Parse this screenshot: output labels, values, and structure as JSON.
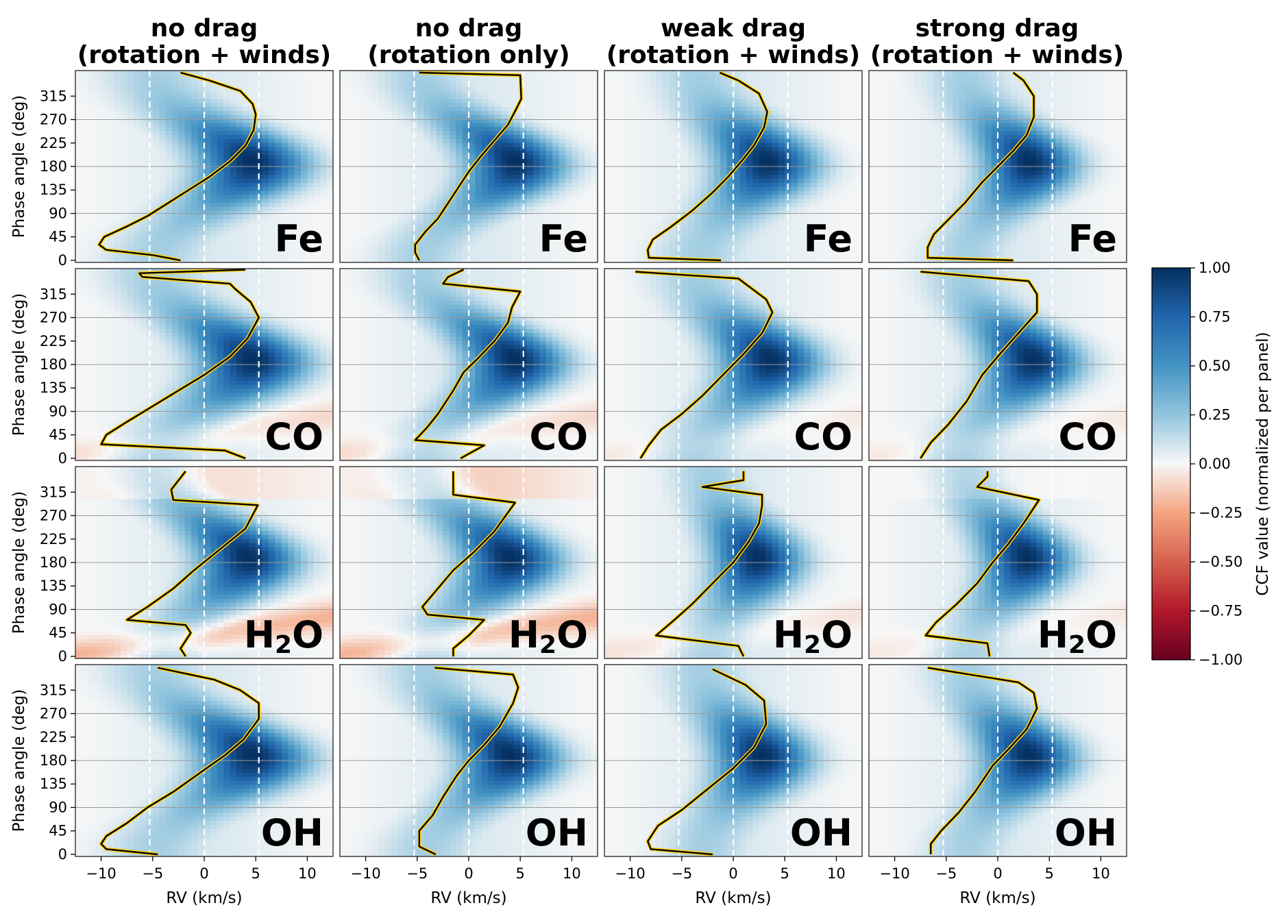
{
  "figure": {
    "column_titles": [
      [
        "no drag",
        "(rotation + winds)"
      ],
      [
        "no drag",
        "(rotation only)"
      ],
      [
        "weak drag",
        "(rotation + winds)"
      ],
      [
        "strong drag",
        "(rotation + winds)"
      ]
    ],
    "row_species": [
      "Fe",
      "CO",
      "H2O",
      "OH"
    ],
    "ylabel": "Phase angle (deg)",
    "xlabel": "RV (km/s)",
    "colorbar_label": "CCF value (normalized per panel)"
  },
  "chart_data": {
    "type": "heatmap",
    "x_axis": {
      "label": "RV (km/s)",
      "ticks": [
        -10,
        -5,
        0,
        5,
        10
      ],
      "range": [
        -12.5,
        12.5
      ]
    },
    "y_axis": {
      "label": "Phase angle (deg)",
      "ticks": [
        0,
        45,
        90,
        135,
        180,
        225,
        270,
        315
      ],
      "range": [
        -4,
        364
      ]
    },
    "colorbar": {
      "label": "CCF value (normalized per panel)",
      "ticks": [
        "1.00",
        "0.75",
        "0.50",
        "0.25",
        "0.00",
        "−0.25",
        "−0.50",
        "−0.75",
        "−1.00"
      ],
      "range": [
        -1,
        1
      ],
      "colormap": "RdBu",
      "colors": {
        "neg_end": "#67001f",
        "neg_mid": "#ef9a7b",
        "zero": "#f7f7f7",
        "pos_mid": "#4393c3",
        "pos_end": "#053061"
      }
    },
    "reference_lines": {
      "vertical_dashed_rv": [
        -5.3,
        0,
        5.3
      ],
      "horizontal_grid_phase": [
        90,
        180,
        270
      ]
    },
    "trace_colors": {
      "line": "#000000",
      "outline": "#ffd21a"
    },
    "panels": [
      {
        "row": 0,
        "col": 0,
        "species": "Fe",
        "max_rv": 5.0,
        "width": 5.0,
        "trace": [
          [
            -2.3,
            0
          ],
          [
            -5,
            10
          ],
          [
            -9.5,
            20
          ],
          [
            -10.2,
            30
          ],
          [
            -9.7,
            45
          ],
          [
            -7.5,
            65
          ],
          [
            -5.5,
            85
          ],
          [
            -3.5,
            110
          ],
          [
            -1.5,
            135
          ],
          [
            0.5,
            160
          ],
          [
            2.5,
            190
          ],
          [
            4,
            220
          ],
          [
            4.8,
            250
          ],
          [
            5,
            280
          ],
          [
            4.7,
            300
          ],
          [
            3.5,
            325
          ],
          [
            0.5,
            345
          ],
          [
            -2.3,
            360
          ]
        ]
      },
      {
        "row": 0,
        "col": 1,
        "species": "Fe",
        "max_rv": 4.8,
        "width": 4.5,
        "trace": [
          [
            -4.8,
            0
          ],
          [
            -5.2,
            15
          ],
          [
            -5.2,
            30
          ],
          [
            -4.2,
            55
          ],
          [
            -3,
            80
          ],
          [
            -2,
            110
          ],
          [
            -1,
            140
          ],
          [
            0,
            170
          ],
          [
            1.2,
            200
          ],
          [
            2.5,
            230
          ],
          [
            3.8,
            260
          ],
          [
            4.6,
            290
          ],
          [
            5.1,
            310
          ],
          [
            5,
            355
          ],
          [
            -4.8,
            360
          ]
        ]
      },
      {
        "row": 0,
        "col": 2,
        "species": "Fe",
        "max_rv": 3.5,
        "width": 4.5,
        "trace": [
          [
            -1.2,
            0
          ],
          [
            -8.2,
            5
          ],
          [
            -8.3,
            20
          ],
          [
            -7.8,
            40
          ],
          [
            -6,
            65
          ],
          [
            -4,
            95
          ],
          [
            -2,
            130
          ],
          [
            -0.5,
            160
          ],
          [
            0.8,
            190
          ],
          [
            2,
            220
          ],
          [
            3,
            255
          ],
          [
            3.3,
            285
          ],
          [
            2.5,
            320
          ],
          [
            0.5,
            345
          ],
          [
            -1.3,
            360
          ]
        ]
      },
      {
        "row": 0,
        "col": 3,
        "species": "Fe",
        "max_rv": 3.3,
        "width": 4.2,
        "trace": [
          [
            1.5,
            0
          ],
          [
            -6.8,
            5
          ],
          [
            -6.8,
            25
          ],
          [
            -6.2,
            50
          ],
          [
            -4.7,
            80
          ],
          [
            -3.2,
            110
          ],
          [
            -1.5,
            150
          ],
          [
            0,
            180
          ],
          [
            1.5,
            210
          ],
          [
            2.8,
            240
          ],
          [
            3.5,
            275
          ],
          [
            3.5,
            315
          ],
          [
            2.5,
            345
          ],
          [
            1.5,
            360
          ]
        ]
      },
      {
        "row": 1,
        "col": 0,
        "species": "CO",
        "max_rv": 5.0,
        "width": 5.0,
        "neg_band": [
          45,
          0.1
        ],
        "trace": [
          [
            4,
            0
          ],
          [
            2,
            15
          ],
          [
            -10,
            27
          ],
          [
            -9.5,
            45
          ],
          [
            -7.5,
            70
          ],
          [
            -5,
            100
          ],
          [
            -2.5,
            130
          ],
          [
            0,
            160
          ],
          [
            2.5,
            195
          ],
          [
            4.2,
            230
          ],
          [
            5.3,
            270
          ],
          [
            4.5,
            300
          ],
          [
            3,
            325
          ],
          [
            2.5,
            335
          ],
          [
            -6,
            348
          ],
          [
            -6.3,
            355
          ],
          [
            4,
            362
          ]
        ]
      },
      {
        "row": 1,
        "col": 1,
        "species": "CO",
        "max_rv": 4.8,
        "width": 4.5,
        "neg_band": [
          45,
          0.1
        ],
        "trace": [
          [
            -0.8,
            0
          ],
          [
            1.5,
            25
          ],
          [
            -5.2,
            35
          ],
          [
            -4,
            60
          ],
          [
            -3,
            85
          ],
          [
            -1.5,
            130
          ],
          [
            -0.5,
            165
          ],
          [
            0.8,
            190
          ],
          [
            2.5,
            225
          ],
          [
            3.8,
            260
          ],
          [
            4.2,
            290
          ],
          [
            5,
            320
          ],
          [
            -2.5,
            335
          ],
          [
            -2,
            348
          ],
          [
            -0.5,
            362
          ]
        ]
      },
      {
        "row": 1,
        "col": 2,
        "species": "CO",
        "max_rv": 3.8,
        "width": 4.5,
        "neg_band": [
          40,
          0.05
        ],
        "trace": [
          [
            -9,
            0
          ],
          [
            -8.2,
            25
          ],
          [
            -7,
            55
          ],
          [
            -5,
            85
          ],
          [
            -3,
            120
          ],
          [
            -1,
            160
          ],
          [
            1,
            200
          ],
          [
            2.8,
            240
          ],
          [
            3.8,
            280
          ],
          [
            3.2,
            305
          ],
          [
            1.5,
            330
          ],
          [
            0.5,
            345
          ],
          [
            -9.5,
            358
          ]
        ]
      },
      {
        "row": 1,
        "col": 3,
        "species": "CO",
        "max_rv": 3.6,
        "width": 4.3,
        "neg_band": [
          40,
          0.05
        ],
        "trace": [
          [
            -7.5,
            0
          ],
          [
            -6.5,
            30
          ],
          [
            -4.8,
            65
          ],
          [
            -3,
            110
          ],
          [
            -1.5,
            160
          ],
          [
            0.2,
            200
          ],
          [
            2,
            240
          ],
          [
            3.8,
            280
          ],
          [
            3.8,
            315
          ],
          [
            3,
            340
          ],
          [
            -7.5,
            358
          ]
        ]
      },
      {
        "row": 2,
        "col": 0,
        "species": "H₂O",
        "max_rv": 4.5,
        "width": 4.5,
        "neg_band": [
          40,
          0.22
        ],
        "top_neg": 0.15,
        "trace": [
          [
            -1.8,
            0
          ],
          [
            -2.3,
            15
          ],
          [
            -1.3,
            45
          ],
          [
            -1.8,
            60
          ],
          [
            -7.5,
            70
          ],
          [
            -5.5,
            95
          ],
          [
            -3,
            130
          ],
          [
            -1,
            165
          ],
          [
            1.5,
            205
          ],
          [
            4,
            245
          ],
          [
            5.2,
            290
          ],
          [
            -3,
            300
          ],
          [
            -3.2,
            320
          ],
          [
            -1.8,
            355
          ]
        ]
      },
      {
        "row": 2,
        "col": 1,
        "species": "H₂O",
        "max_rv": 4.3,
        "width": 4.5,
        "neg_band": [
          40,
          0.22
        ],
        "top_neg": 0.2,
        "trace": [
          [
            -1.5,
            0
          ],
          [
            -1.5,
            15
          ],
          [
            0,
            40
          ],
          [
            1.5,
            70
          ],
          [
            -4,
            80
          ],
          [
            -4.5,
            95
          ],
          [
            -3,
            130
          ],
          [
            -1.5,
            165
          ],
          [
            0.5,
            200
          ],
          [
            2.5,
            240
          ],
          [
            4.5,
            295
          ],
          [
            -1.5,
            310
          ],
          [
            -1.5,
            355
          ]
        ]
      },
      {
        "row": 2,
        "col": 2,
        "species": "H₂O",
        "max_rv": 2.5,
        "width": 4.0,
        "neg_band": [
          45,
          0.07
        ],
        "trace": [
          [
            1,
            0
          ],
          [
            0.5,
            20
          ],
          [
            -7.5,
            40
          ],
          [
            -6,
            65
          ],
          [
            -4,
            100
          ],
          [
            -2,
            140
          ],
          [
            0,
            180
          ],
          [
            1.5,
            220
          ],
          [
            2.5,
            255
          ],
          [
            2.8,
            290
          ],
          [
            2.8,
            310
          ],
          [
            -3,
            325
          ],
          [
            1,
            338
          ],
          [
            1,
            355
          ]
        ]
      },
      {
        "row": 2,
        "col": 3,
        "species": "H₂O",
        "max_rv": 3.0,
        "width": 4.0,
        "neg_band": [
          45,
          0.05
        ],
        "top_neg": 0.06,
        "trace": [
          [
            -0.8,
            0
          ],
          [
            -1,
            25
          ],
          [
            -7,
            40
          ],
          [
            -6,
            65
          ],
          [
            -4,
            100
          ],
          [
            -2,
            140
          ],
          [
            -0.5,
            180
          ],
          [
            1,
            215
          ],
          [
            2.5,
            255
          ],
          [
            4,
            300
          ],
          [
            -2,
            325
          ],
          [
            -1,
            345
          ],
          [
            -1,
            355
          ]
        ]
      },
      {
        "row": 3,
        "col": 0,
        "species": "OH",
        "max_rv": 5.0,
        "width": 5.0,
        "trace": [
          [
            -4.5,
            0
          ],
          [
            -9.5,
            10
          ],
          [
            -10,
            20
          ],
          [
            -9.5,
            35
          ],
          [
            -7.5,
            60
          ],
          [
            -5.5,
            90
          ],
          [
            -3,
            120
          ],
          [
            -0.5,
            155
          ],
          [
            2,
            190
          ],
          [
            3.8,
            220
          ],
          [
            5.3,
            260
          ],
          [
            5.3,
            290
          ],
          [
            3.5,
            315
          ],
          [
            1,
            335
          ],
          [
            -4.5,
            358
          ]
        ]
      },
      {
        "row": 3,
        "col": 1,
        "species": "OH",
        "max_rv": 4.3,
        "width": 4.5,
        "trace": [
          [
            -3.2,
            0
          ],
          [
            -4.8,
            15
          ],
          [
            -4.8,
            45
          ],
          [
            -3.5,
            75
          ],
          [
            -2.5,
            110
          ],
          [
            -1.2,
            150
          ],
          [
            0,
            180
          ],
          [
            1.5,
            210
          ],
          [
            3,
            245
          ],
          [
            4.3,
            290
          ],
          [
            4.8,
            320
          ],
          [
            4.3,
            345
          ],
          [
            -3.3,
            358
          ]
        ]
      },
      {
        "row": 3,
        "col": 2,
        "species": "OH",
        "max_rv": 3.0,
        "width": 4.3,
        "trace": [
          [
            -2,
            0
          ],
          [
            -8,
            10
          ],
          [
            -8.3,
            25
          ],
          [
            -7.3,
            55
          ],
          [
            -5,
            85
          ],
          [
            -2.5,
            125
          ],
          [
            0,
            165
          ],
          [
            2,
            205
          ],
          [
            3.2,
            250
          ],
          [
            3,
            295
          ],
          [
            1.2,
            325
          ],
          [
            -2,
            355
          ]
        ]
      },
      {
        "row": 3,
        "col": 3,
        "species": "OH",
        "max_rv": 3.2,
        "width": 4.2,
        "trace": [
          [
            -6.5,
            0
          ],
          [
            -6.5,
            20
          ],
          [
            -5.5,
            45
          ],
          [
            -3.8,
            80
          ],
          [
            -2.2,
            120
          ],
          [
            -0.5,
            170
          ],
          [
            1.2,
            205
          ],
          [
            2.8,
            240
          ],
          [
            3.8,
            280
          ],
          [
            3.5,
            310
          ],
          [
            2,
            330
          ],
          [
            -6.8,
            358
          ]
        ]
      }
    ]
  }
}
